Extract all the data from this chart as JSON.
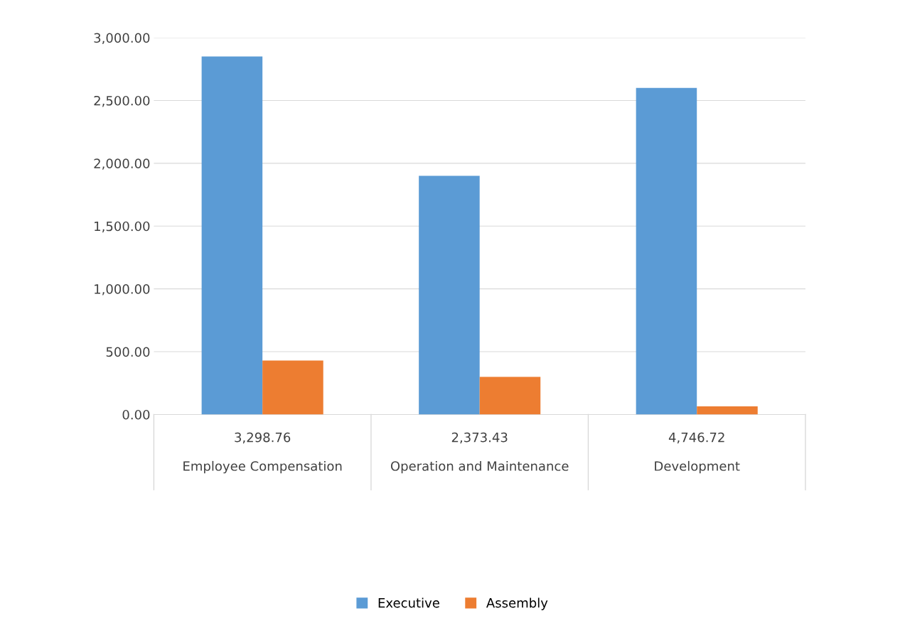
{
  "chart_data": {
    "type": "bar",
    "categories": [
      "3,298.76\n\nEmployee Compensation",
      "2,373.43\n\nOperation and Maintenance",
      "4,746.72\n\nDevelopment"
    ],
    "series": [
      {
        "name": "Executive",
        "color": "#5b9bd5",
        "values": [
          2850,
          1900,
          2600
        ]
      },
      {
        "name": "Assembly",
        "color": "#ed7d31",
        "values": [
          430,
          300,
          65
        ]
      }
    ],
    "ylim": [
      0,
      3000
    ],
    "yticks": [
      {
        "value": 0,
        "label": "0.00"
      },
      {
        "value": 500,
        "label": "500.00"
      },
      {
        "value": 1000,
        "label": "1,000.00"
      },
      {
        "value": 1500,
        "label": "1,500.00"
      },
      {
        "value": 2000,
        "label": "2,000.00"
      },
      {
        "value": 2500,
        "label": "2,500.00"
      },
      {
        "value": 3000,
        "label": "3,000.00"
      }
    ],
    "grid": "y",
    "legend": "bottom"
  }
}
